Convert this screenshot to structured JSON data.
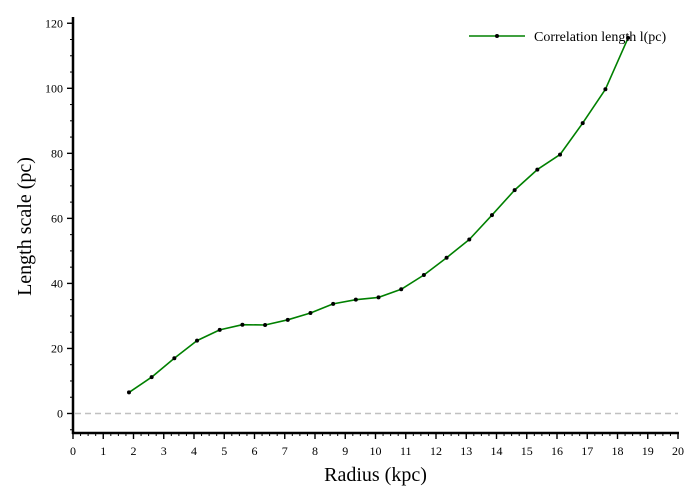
{
  "chart_data": {
    "type": "line",
    "title": "",
    "xlabel": "Radius (kpc)",
    "ylabel": "Length scale (pc)",
    "xlim": [
      0,
      20
    ],
    "ylim": [
      -6,
      121
    ],
    "x_ticks": [
      0,
      1,
      2,
      3,
      4,
      5,
      6,
      7,
      8,
      9,
      10,
      11,
      12,
      13,
      14,
      15,
      16,
      17,
      18,
      19,
      20
    ],
    "y_ticks": [
      0,
      20,
      40,
      60,
      80,
      100,
      120
    ],
    "x_minor_step": 0.25,
    "y_minor_step": 5,
    "grid": false,
    "legend_position": "top-right",
    "reference_line": {
      "y": 0,
      "style": "dashed",
      "color": "#c0c0c0"
    },
    "series": [
      {
        "name": "Correlation length l(pc)",
        "color": "#008000",
        "marker_color": "#000000",
        "x": [
          1.85,
          2.6,
          3.35,
          4.1,
          4.85,
          5.6,
          6.35,
          7.1,
          7.85,
          8.6,
          9.35,
          10.1,
          10.85,
          11.6,
          12.35,
          13.1,
          13.85,
          14.6,
          15.35,
          16.1,
          16.85,
          17.6,
          18.35
        ],
        "y": [
          6.5,
          11.2,
          17.0,
          22.4,
          25.7,
          27.3,
          27.2,
          28.8,
          30.9,
          33.7,
          35.0,
          35.7,
          38.2,
          42.6,
          47.9,
          53.5,
          61.0,
          68.7,
          75.0,
          79.6,
          89.3,
          99.7,
          115.5
        ]
      }
    ]
  }
}
